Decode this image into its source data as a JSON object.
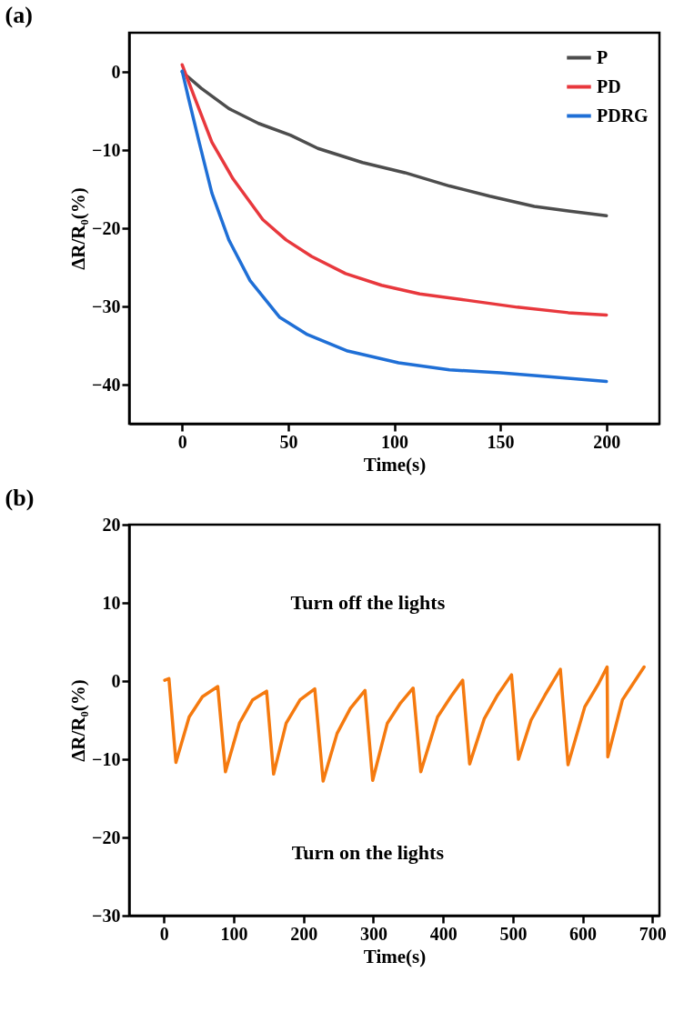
{
  "chart_data": [
    {
      "type": "line",
      "title": "(a)",
      "xlabel": "Time(s)",
      "ylabel": "ΔR/R₀(%)",
      "xlim": [
        -25,
        225
      ],
      "xticks": [
        0,
        50,
        100,
        150,
        200
      ],
      "ylim": [
        -45,
        5
      ],
      "yticks": [
        0,
        -10,
        -20,
        -30,
        -40
      ],
      "grid": false,
      "legend": "top right",
      "series": [
        {
          "name": "P",
          "color": "#4d4d4d",
          "x": [
            0,
            9,
            22,
            36,
            51,
            64,
            85,
            105,
            126,
            145,
            166,
            182,
            200
          ],
          "values": [
            0,
            -2.1,
            -4.7,
            -6.6,
            -8.1,
            -9.8,
            -11.6,
            -12.9,
            -14.6,
            -15.9,
            -17.2,
            -17.8,
            -18.4
          ]
        },
        {
          "name": "PD",
          "color": "#e8383d",
          "x": [
            0,
            6,
            14,
            24,
            38,
            49,
            61,
            77,
            94,
            112,
            134,
            158,
            182,
            200
          ],
          "values": [
            0.9,
            -3.4,
            -9,
            -13.7,
            -18.9,
            -21.5,
            -23.6,
            -25.8,
            -27.3,
            -28.4,
            -29.2,
            -30.1,
            -30.8,
            -31.1
          ]
        },
        {
          "name": "PDRG",
          "color": "#1f6fd6",
          "x": [
            0,
            3,
            8,
            14,
            22,
            32,
            46,
            59,
            78,
            102,
            126,
            150,
            174,
            200
          ],
          "values": [
            0.1,
            -3.4,
            -9,
            -15.5,
            -21.5,
            -26.7,
            -31.4,
            -33.6,
            -35.7,
            -37.2,
            -38.1,
            -38.5,
            -39,
            -39.6
          ]
        }
      ]
    },
    {
      "type": "line",
      "title": "(b)",
      "xlabel": "Time(s)",
      "ylabel": "ΔR/R₀(%)",
      "xlim": [
        -50,
        710
      ],
      "xticks": [
        0,
        100,
        200,
        300,
        400,
        500,
        600,
        700
      ],
      "ylim": [
        -30,
        20
      ],
      "yticks": [
        20,
        10,
        0,
        -10,
        -20,
        -30
      ],
      "grid": false,
      "annotations": [
        "Turn off the lights",
        "Turn on the lights"
      ],
      "series": [
        {
          "color": "#f57a0f",
          "x": [
            1,
            7,
            17,
            36,
            55,
            77,
            88,
            108,
            127,
            147,
            157,
            175,
            195,
            216,
            228,
            248,
            267,
            288,
            299,
            320,
            339,
            357,
            368,
            392,
            411,
            428,
            438,
            459,
            478,
            498,
            508,
            526,
            546,
            568,
            579,
            603,
            623,
            635,
            636,
            657,
            688
          ],
          "values": [
            0.1,
            0.3,
            -10.4,
            -4.6,
            -2,
            -0.7,
            -11.6,
            -5.4,
            -2.4,
            -1.3,
            -11.9,
            -5.4,
            -2.4,
            -1,
            -12.8,
            -6.7,
            -3.5,
            -1.2,
            -12.7,
            -5.4,
            -2.8,
            -0.9,
            -11.6,
            -4.6,
            -2,
            0.1,
            -10.6,
            -4.8,
            -1.8,
            0.8,
            -10,
            -5,
            -1.8,
            1.5,
            -10.7,
            -3.3,
            -0.3,
            1.8,
            -9.7,
            -2.4,
            1.8
          ]
        }
      ]
    }
  ]
}
